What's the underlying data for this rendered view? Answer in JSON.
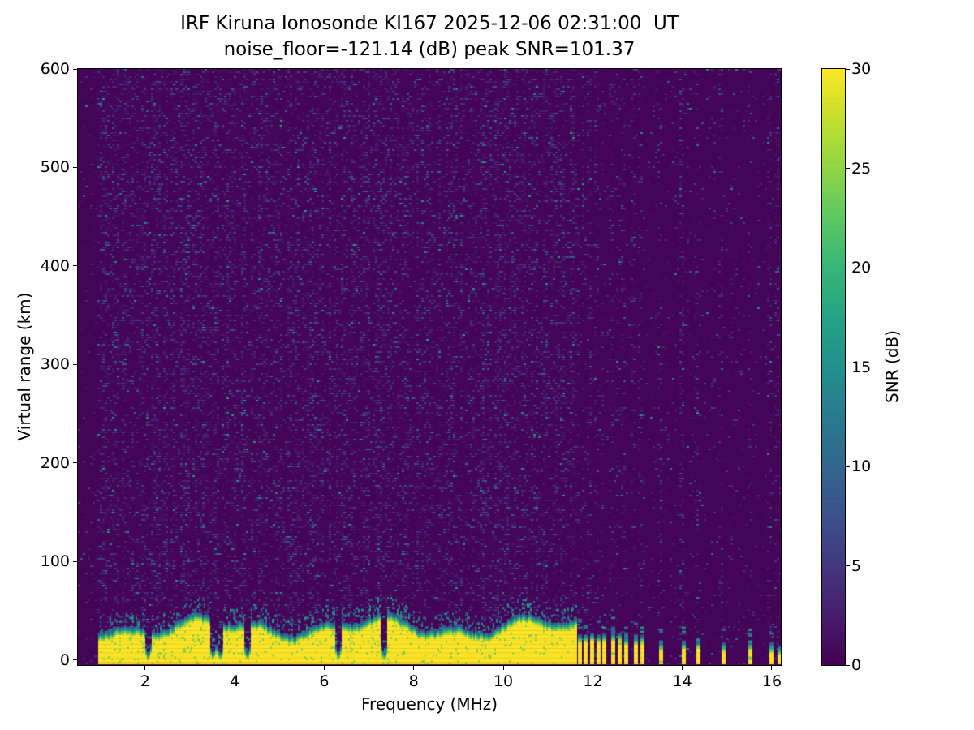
{
  "chart_data": {
    "type": "heatmap",
    "title": "IRF Kiruna Ionosonde KI167 2025-12-06 02:31:00  UT",
    "subtitle": "noise_floor=-121.14 (dB) peak SNR=101.37",
    "xlabel": "Frequency (MHz)",
    "ylabel": "Virtual range (km)",
    "xlim": [
      0.5,
      16.2
    ],
    "ylim": [
      -5,
      600
    ],
    "x_ticks": [
      2,
      4,
      6,
      8,
      10,
      12,
      14,
      16
    ],
    "y_ticks": [
      0,
      100,
      200,
      300,
      400,
      500,
      600
    ],
    "grid": false,
    "colormap": "viridis",
    "colorbar": {
      "label": "SNR (dB)",
      "min": 0,
      "max": 30,
      "ticks": [
        0,
        5,
        10,
        15,
        20,
        25,
        30
      ]
    },
    "station": "IRF Kiruna Ionosonde KI167",
    "timestamp_ut": "2025-12-06 02:31:00",
    "noise_floor_db": -121.14,
    "peak_snr_db": 101.37,
    "background_noise": {
      "snr_range_db": [
        0,
        9
      ],
      "speckle_density_low_freq": 0.27,
      "speckle_density_high_freq": 0.05,
      "sparse_region_start_mhz": 11.62
    },
    "echo_band": {
      "description": "Saturated low-virtual-range return band, SNR pinned at colorbar max",
      "freq_start_mhz": 0.95,
      "freq_end_mhz": 11.62,
      "base_km": -5,
      "top_km_range": [
        30,
        50
      ],
      "snr_db": 30,
      "notch_freqs_mhz": [
        2.05,
        3.5,
        3.66,
        4.27,
        6.3,
        7.32
      ]
    },
    "rf_stripes_mhz": [
      11.66,
      11.8,
      11.94,
      12.08,
      12.22,
      12.42,
      12.56,
      12.7,
      12.92,
      13.06,
      13.48,
      13.98,
      14.32,
      14.88,
      15.48,
      15.94,
      16.12
    ]
  }
}
